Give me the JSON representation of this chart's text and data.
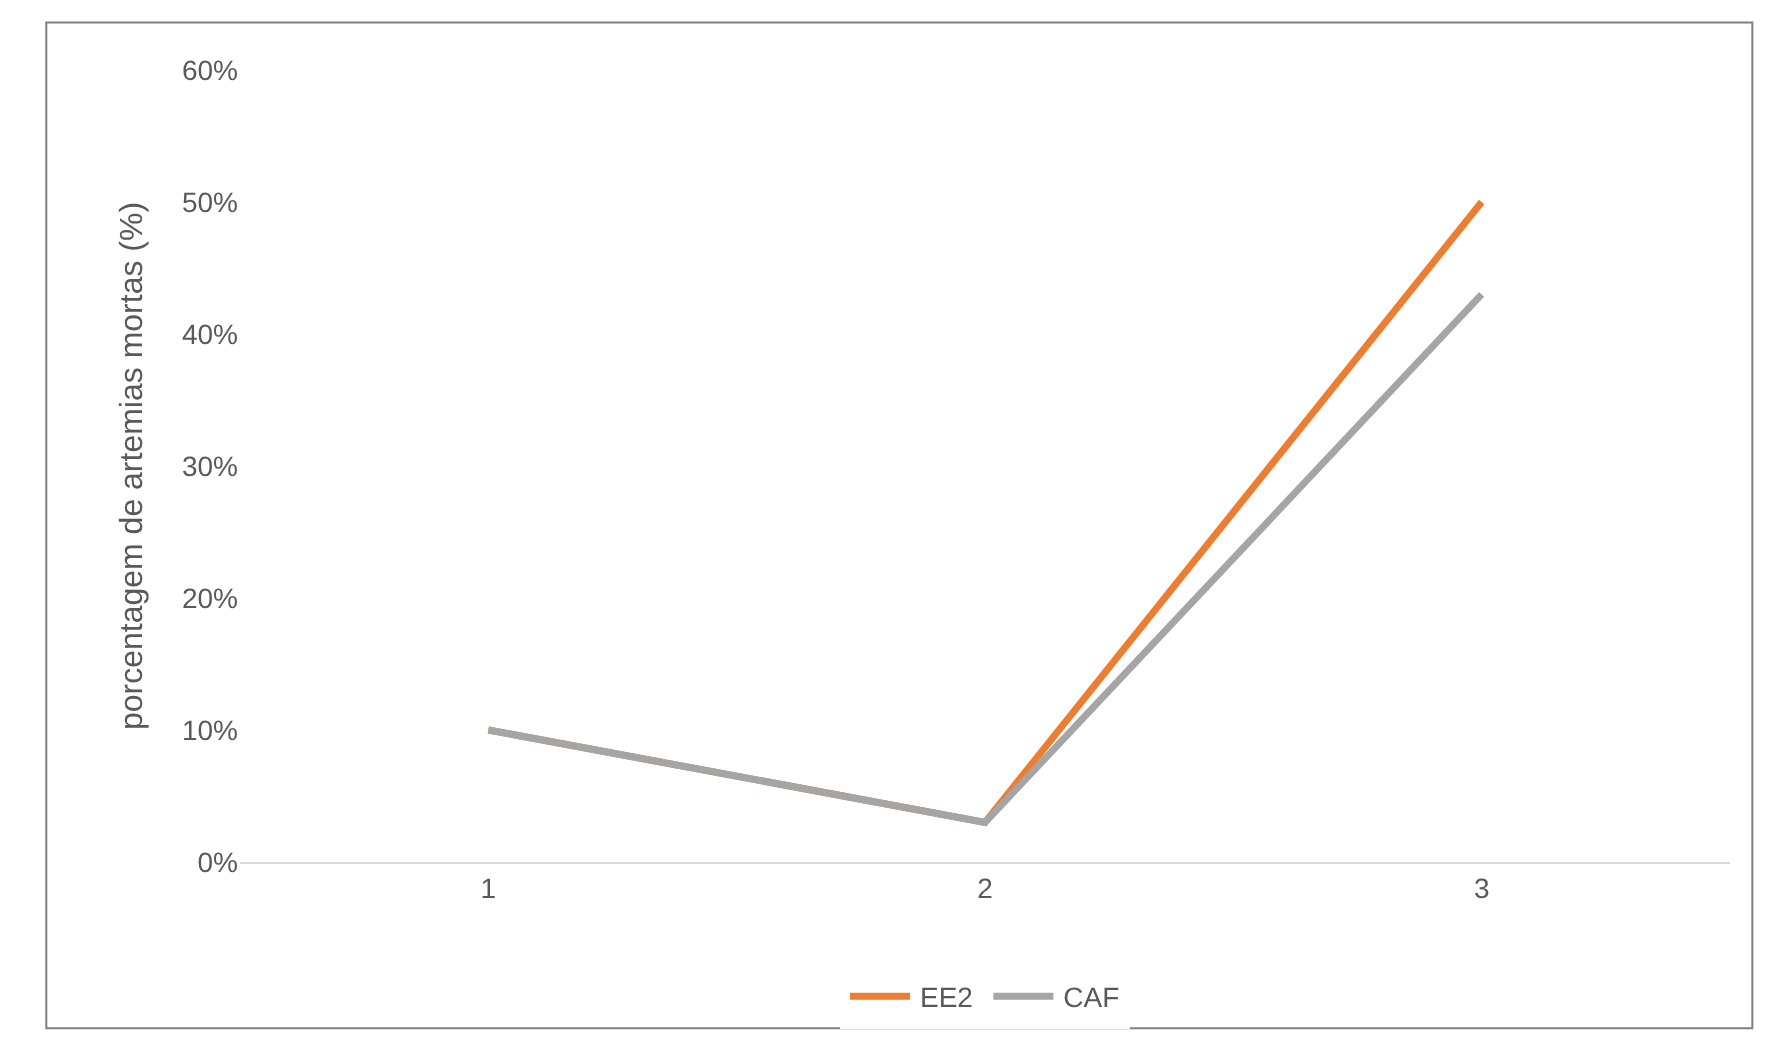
{
  "chart_data": {
    "type": "line",
    "ylabel": "porcentagem de artemias mortas (%)",
    "categories": [
      "1",
      "2",
      "3"
    ],
    "series": [
      {
        "name": "EE2",
        "color": "#ed7d31",
        "values": [
          10,
          3,
          50
        ]
      },
      {
        "name": "CAF",
        "color": "#a5a5a5",
        "values": [
          10,
          3,
          43
        ]
      }
    ],
    "ylim": [
      0,
      60
    ],
    "yticks": [
      {
        "value": 0,
        "label": "0%"
      },
      {
        "value": 10,
        "label": "10%"
      },
      {
        "value": 20,
        "label": "20%"
      },
      {
        "value": 30,
        "label": "30%"
      },
      {
        "value": 40,
        "label": "40%"
      },
      {
        "value": 50,
        "label": "50%"
      },
      {
        "value": 60,
        "label": "60%"
      }
    ],
    "grid": false,
    "legend": "bottom",
    "marker": "none",
    "line_style": "solid"
  }
}
